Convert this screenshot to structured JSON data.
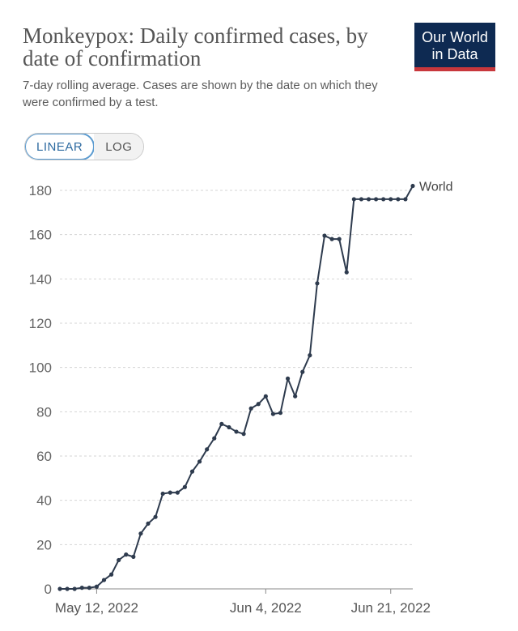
{
  "header": {
    "title": "Monkeypox: Daily confirmed cases, by date of confirmation",
    "subtitle": "7-day rolling average. Cases are shown by the date on which they were confirmed by a test."
  },
  "logo": {
    "line1": "Our World",
    "line2": "in Data",
    "bg_color": "#0e2a52",
    "stripe_color": "#c8373c"
  },
  "scale_toggle": {
    "options": [
      "LINEAR",
      "LOG"
    ],
    "selected": "LINEAR"
  },
  "colors": {
    "line": "#2e3b4e",
    "grid": "#d5d5d5",
    "axis": "#888888"
  },
  "chart_data": {
    "type": "line",
    "title": "Monkeypox: Daily confirmed cases, by date of confirmation",
    "xlabel": "",
    "ylabel": "",
    "x_tick_labels": [
      "May 12, 2022",
      "Jun 4, 2022",
      "Jun 21, 2022"
    ],
    "x_tick_dates": [
      "2022-05-12",
      "2022-06-04",
      "2022-06-21"
    ],
    "y_ticks": [
      0,
      20,
      40,
      60,
      80,
      100,
      120,
      140,
      160,
      180
    ],
    "ylim": [
      0,
      180
    ],
    "xlim": [
      "2022-05-07",
      "2022-06-24"
    ],
    "grid": true,
    "series": [
      {
        "name": "World",
        "x": [
          "2022-05-07",
          "2022-05-08",
          "2022-05-09",
          "2022-05-10",
          "2022-05-11",
          "2022-05-12",
          "2022-05-13",
          "2022-05-14",
          "2022-05-15",
          "2022-05-16",
          "2022-05-17",
          "2022-05-18",
          "2022-05-19",
          "2022-05-20",
          "2022-05-21",
          "2022-05-22",
          "2022-05-23",
          "2022-05-24",
          "2022-05-25",
          "2022-05-26",
          "2022-05-27",
          "2022-05-28",
          "2022-05-29",
          "2022-05-30",
          "2022-05-31",
          "2022-06-01",
          "2022-06-02",
          "2022-06-03",
          "2022-06-04",
          "2022-06-05",
          "2022-06-06",
          "2022-06-07",
          "2022-06-08",
          "2022-06-09",
          "2022-06-10",
          "2022-06-11",
          "2022-06-12",
          "2022-06-13",
          "2022-06-14",
          "2022-06-15",
          "2022-06-16",
          "2022-06-17",
          "2022-06-18",
          "2022-06-19",
          "2022-06-20",
          "2022-06-21",
          "2022-06-22",
          "2022-06-23",
          "2022-06-24"
        ],
        "values": [
          0,
          0,
          0,
          0.5,
          0.5,
          1,
          4,
          6.5,
          13,
          15.5,
          14.5,
          25,
          29.5,
          32.5,
          43,
          43.5,
          43.5,
          46,
          53,
          57.5,
          63,
          68,
          74.5,
          73,
          71,
          70,
          81.5,
          83.5,
          87,
          79,
          79.5,
          95,
          87,
          98,
          105.5,
          138,
          159.5,
          158,
          158,
          143,
          176,
          176,
          176,
          176,
          176,
          176,
          176,
          176,
          182
        ]
      }
    ]
  }
}
